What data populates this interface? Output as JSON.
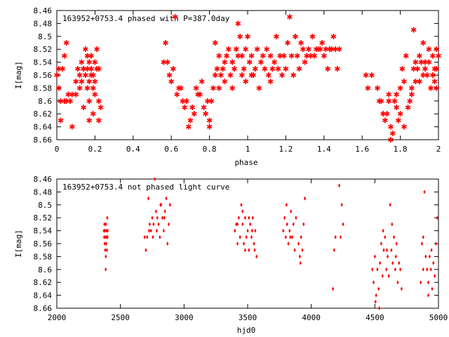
{
  "chart_data": [
    {
      "type": "scatter",
      "title": "163952+0753.4 phased with P=387.0day",
      "xlabel": "phase",
      "ylabel": "I[mag]",
      "xlim": [
        0,
        2
      ],
      "ylim": [
        8.66,
        8.46
      ],
      "y_inverted": true,
      "grid": false,
      "color": "#ff0000",
      "marker": "star",
      "xticks": [
        "0",
        "0.2",
        "0.4",
        "0.6",
        "0.8",
        "1",
        "1.2",
        "1.4",
        "1.6",
        "1.8",
        "2"
      ],
      "yticks": [
        "8.46",
        "8.48",
        "8.5",
        "8.52",
        "8.54",
        "8.56",
        "8.58",
        "8.6",
        "8.62",
        "8.64",
        "8.66"
      ],
      "points": [
        [
          0.0,
          8.56
        ],
        [
          0.01,
          8.58
        ],
        [
          0.01,
          8.55
        ],
        [
          0.02,
          8.6
        ],
        [
          0.02,
          8.63
        ],
        [
          0.03,
          8.55
        ],
        [
          0.04,
          8.53
        ],
        [
          0.04,
          8.6
        ],
        [
          0.05,
          8.51
        ],
        [
          0.05,
          8.6
        ],
        [
          0.06,
          8.59
        ],
        [
          0.07,
          8.6
        ],
        [
          0.08,
          8.59
        ],
        [
          0.08,
          8.64
        ],
        [
          0.1,
          8.59
        ],
        [
          0.1,
          8.57
        ],
        [
          0.11,
          8.55
        ],
        [
          0.12,
          8.56
        ],
        [
          0.12,
          8.58
        ],
        [
          0.13,
          8.54
        ],
        [
          0.13,
          8.57
        ],
        [
          0.14,
          8.55
        ],
        [
          0.14,
          8.61
        ],
        [
          0.15,
          8.52
        ],
        [
          0.15,
          8.56
        ],
        [
          0.16,
          8.53
        ],
        [
          0.16,
          8.55
        ],
        [
          0.16,
          8.58
        ],
        [
          0.17,
          8.54
        ],
        [
          0.17,
          8.57
        ],
        [
          0.17,
          8.6
        ],
        [
          0.18,
          8.55
        ],
        [
          0.18,
          8.53
        ],
        [
          0.19,
          8.56
        ],
        [
          0.19,
          8.58
        ],
        [
          0.19,
          8.62
        ],
        [
          0.2,
          8.54
        ],
        [
          0.2,
          8.57
        ],
        [
          0.21,
          8.52
        ],
        [
          0.21,
          8.55
        ],
        [
          0.22,
          8.6
        ],
        [
          0.22,
          8.63
        ],
        [
          0.23,
          8.61
        ],
        [
          0.17,
          8.63
        ],
        [
          0.14,
          8.55
        ],
        [
          0.2,
          8.59
        ],
        [
          0.18,
          8.56
        ],
        [
          0.22,
          8.55
        ],
        [
          0.56,
          8.54
        ],
        [
          0.57,
          8.51
        ],
        [
          0.58,
          8.54
        ],
        [
          0.59,
          8.56
        ],
        [
          0.6,
          8.57
        ],
        [
          0.61,
          8.55
        ],
        [
          0.62,
          8.47
        ],
        [
          0.63,
          8.59
        ],
        [
          0.64,
          8.58
        ],
        [
          0.65,
          8.58
        ],
        [
          0.66,
          8.6
        ],
        [
          0.67,
          8.61
        ],
        [
          0.68,
          8.6
        ],
        [
          0.69,
          8.64
        ],
        [
          0.7,
          8.63
        ],
        [
          0.71,
          8.61
        ],
        [
          0.72,
          8.62
        ],
        [
          0.73,
          8.58
        ],
        [
          0.74,
          8.59
        ],
        [
          0.75,
          8.59
        ],
        [
          0.76,
          8.57
        ],
        [
          0.77,
          8.61
        ],
        [
          0.78,
          8.62
        ],
        [
          0.79,
          8.6
        ],
        [
          0.8,
          8.63
        ],
        [
          0.8,
          8.64
        ],
        [
          0.81,
          8.6
        ],
        [
          0.82,
          8.58
        ],
        [
          0.83,
          8.56
        ],
        [
          0.84,
          8.55
        ],
        [
          0.85,
          8.53
        ],
        [
          0.86,
          8.56
        ],
        [
          0.87,
          8.55
        ],
        [
          0.88,
          8.54
        ],
        [
          0.89,
          8.53
        ],
        [
          0.9,
          8.52
        ],
        [
          0.91,
          8.56
        ],
        [
          0.92,
          8.54
        ],
        [
          0.93,
          8.55
        ],
        [
          0.94,
          8.52
        ],
        [
          0.95,
          8.48
        ],
        [
          0.96,
          8.5
        ],
        [
          0.97,
          8.53
        ],
        [
          0.98,
          8.55
        ],
        [
          0.99,
          8.52
        ],
        [
          1.0,
          8.5
        ],
        [
          1.01,
          8.54
        ],
        [
          1.02,
          8.53
        ],
        [
          1.03,
          8.56
        ],
        [
          1.04,
          8.55
        ],
        [
          1.05,
          8.52
        ],
        [
          1.06,
          8.58
        ],
        [
          1.07,
          8.54
        ],
        [
          1.08,
          8.53
        ],
        [
          1.09,
          8.55
        ],
        [
          1.1,
          8.52
        ],
        [
          1.11,
          8.56
        ],
        [
          1.12,
          8.53
        ],
        [
          1.13,
          8.55
        ],
        [
          1.14,
          8.54
        ],
        [
          1.15,
          8.5
        ],
        [
          1.16,
          8.55
        ],
        [
          1.17,
          8.53
        ],
        [
          1.18,
          8.56
        ],
        [
          1.19,
          8.53
        ],
        [
          1.2,
          8.55
        ],
        [
          1.21,
          8.51
        ],
        [
          1.22,
          8.47
        ],
        [
          1.23,
          8.53
        ],
        [
          1.24,
          8.56
        ],
        [
          1.25,
          8.5
        ],
        [
          1.26,
          8.53
        ],
        [
          1.27,
          8.55
        ],
        [
          1.28,
          8.51
        ],
        [
          1.29,
          8.52
        ],
        [
          1.3,
          8.54
        ],
        [
          1.31,
          8.53
        ],
        [
          1.32,
          8.52
        ],
        [
          1.33,
          8.53
        ],
        [
          1.34,
          8.5
        ],
        [
          1.35,
          8.53
        ],
        [
          1.36,
          8.52
        ],
        [
          1.37,
          8.52
        ],
        [
          1.38,
          8.52
        ],
        [
          1.39,
          8.51
        ],
        [
          1.4,
          8.53
        ],
        [
          1.41,
          8.52
        ],
        [
          1.42,
          8.55
        ],
        [
          1.43,
          8.52
        ],
        [
          1.44,
          8.52
        ],
        [
          1.45,
          8.5
        ],
        [
          1.46,
          8.52
        ],
        [
          1.47,
          8.55
        ],
        [
          1.48,
          8.52
        ],
        [
          0.83,
          8.51
        ],
        [
          0.88,
          8.57
        ],
        [
          0.92,
          8.58
        ],
        [
          0.97,
          8.56
        ],
        [
          1.02,
          8.56
        ],
        [
          0.85,
          8.58
        ],
        [
          0.95,
          8.53
        ],
        [
          0.99,
          8.57
        ],
        [
          1.12,
          8.57
        ],
        [
          1.62,
          8.56
        ],
        [
          1.63,
          8.58
        ],
        [
          1.65,
          8.56
        ],
        [
          1.68,
          8.58
        ],
        [
          1.69,
          8.6
        ],
        [
          1.7,
          8.6
        ],
        [
          1.71,
          8.62
        ],
        [
          1.72,
          8.63
        ],
        [
          1.73,
          8.62
        ],
        [
          1.74,
          8.59
        ],
        [
          1.75,
          8.64
        ],
        [
          1.75,
          8.66
        ],
        [
          1.76,
          8.65
        ],
        [
          1.77,
          8.6
        ],
        [
          1.78,
          8.61
        ],
        [
          1.79,
          8.63
        ],
        [
          1.8,
          8.62
        ],
        [
          1.8,
          8.58
        ],
        [
          1.81,
          8.55
        ],
        [
          1.82,
          8.57
        ],
        [
          1.82,
          8.64
        ],
        [
          1.83,
          8.53
        ],
        [
          1.84,
          8.61
        ],
        [
          1.85,
          8.6
        ],
        [
          1.86,
          8.59
        ],
        [
          1.86,
          8.58
        ],
        [
          1.87,
          8.55
        ],
        [
          1.87,
          8.49
        ],
        [
          1.88,
          8.54
        ],
        [
          1.88,
          8.57
        ],
        [
          1.89,
          8.55
        ],
        [
          1.9,
          8.53
        ],
        [
          1.9,
          8.57
        ],
        [
          1.91,
          8.54
        ],
        [
          1.92,
          8.56
        ],
        [
          1.92,
          8.51
        ],
        [
          1.93,
          8.55
        ],
        [
          1.94,
          8.56
        ],
        [
          1.95,
          8.52
        ],
        [
          1.95,
          8.54
        ],
        [
          1.96,
          8.58
        ],
        [
          1.97,
          8.53
        ],
        [
          1.97,
          8.56
        ],
        [
          1.98,
          8.55
        ],
        [
          1.98,
          8.57
        ],
        [
          1.99,
          8.55
        ],
        [
          1.99,
          8.58
        ],
        [
          2.0,
          8.53
        ],
        [
          1.74,
          8.6
        ],
        [
          1.78,
          8.59
        ],
        [
          1.93,
          8.54
        ],
        [
          1.99,
          8.52
        ]
      ]
    },
    {
      "type": "scatter",
      "title": "163952+0753.4 not phased light curve",
      "xlabel": "hjd0",
      "ylabel": "I[mag]",
      "xlim": [
        2000,
        5000
      ],
      "ylim": [
        8.66,
        8.46
      ],
      "y_inverted": true,
      "grid": false,
      "color": "#ff0000",
      "marker": "diamond",
      "xticks": [
        "2000",
        "2500",
        "3000",
        "3500",
        "4000",
        "4500",
        "5000"
      ],
      "yticks": [
        "8.46",
        "8.48",
        "8.5",
        "8.52",
        "8.54",
        "8.56",
        "8.58",
        "8.6",
        "8.62",
        "8.64",
        "8.66"
      ],
      "points": [
        [
          2370,
          8.54
        ],
        [
          2372,
          8.55
        ],
        [
          2374,
          8.53
        ],
        [
          2376,
          8.56
        ],
        [
          2378,
          8.54
        ],
        [
          2380,
          8.57
        ],
        [
          2382,
          8.55
        ],
        [
          2384,
          8.6
        ],
        [
          2386,
          8.53
        ],
        [
          2388,
          8.56
        ],
        [
          2390,
          8.54
        ],
        [
          2392,
          8.55
        ],
        [
          2394,
          8.57
        ],
        [
          2396,
          8.52
        ],
        [
          2398,
          8.55
        ],
        [
          2400,
          8.54
        ],
        [
          2385,
          8.58
        ],
        [
          2690,
          8.55
        ],
        [
          2700,
          8.57
        ],
        [
          2710,
          8.55
        ],
        [
          2720,
          8.49
        ],
        [
          2730,
          8.53
        ],
        [
          2740,
          8.54
        ],
        [
          2750,
          8.52
        ],
        [
          2760,
          8.53
        ],
        [
          2770,
          8.46
        ],
        [
          2780,
          8.51
        ],
        [
          2790,
          8.52
        ],
        [
          2800,
          8.53
        ],
        [
          2810,
          8.55
        ],
        [
          2820,
          8.5
        ],
        [
          2830,
          8.52
        ],
        [
          2840,
          8.54
        ],
        [
          2850,
          8.51
        ],
        [
          2860,
          8.49
        ],
        [
          2870,
          8.56
        ],
        [
          2880,
          8.53
        ],
        [
          2890,
          8.5
        ],
        [
          2725,
          8.54
        ],
        [
          2755,
          8.55
        ],
        [
          2785,
          8.54
        ],
        [
          2815,
          8.5
        ],
        [
          2845,
          8.52
        ],
        [
          3400,
          8.54
        ],
        [
          3410,
          8.53
        ],
        [
          3420,
          8.56
        ],
        [
          3430,
          8.52
        ],
        [
          3440,
          8.55
        ],
        [
          3450,
          8.5
        ],
        [
          3460,
          8.53
        ],
        [
          3470,
          8.56
        ],
        [
          3480,
          8.52
        ],
        [
          3490,
          8.55
        ],
        [
          3500,
          8.54
        ],
        [
          3510,
          8.57
        ],
        [
          3520,
          8.53
        ],
        [
          3530,
          8.55
        ],
        [
          3540,
          8.52
        ],
        [
          3550,
          8.56
        ],
        [
          3560,
          8.54
        ],
        [
          3570,
          8.58
        ],
        [
          3420,
          8.53
        ],
        [
          3460,
          8.51
        ],
        [
          3480,
          8.57
        ],
        [
          3510,
          8.52
        ],
        [
          3535,
          8.54
        ],
        [
          3555,
          8.57
        ],
        [
          3780,
          8.54
        ],
        [
          3790,
          8.52
        ],
        [
          3800,
          8.55
        ],
        [
          3810,
          8.53
        ],
        [
          3820,
          8.56
        ],
        [
          3830,
          8.54
        ],
        [
          3840,
          8.51
        ],
        [
          3850,
          8.55
        ],
        [
          3860,
          8.53
        ],
        [
          3870,
          8.57
        ],
        [
          3880,
          8.52
        ],
        [
          3900,
          8.56
        ],
        [
          3910,
          8.58
        ],
        [
          3920,
          8.55
        ],
        [
          3930,
          8.57
        ],
        [
          3940,
          8.53
        ],
        [
          3950,
          8.49
        ],
        [
          3805,
          8.5
        ],
        [
          3835,
          8.55
        ],
        [
          3915,
          8.59
        ],
        [
          4170,
          8.63
        ],
        [
          4180,
          8.57
        ],
        [
          4190,
          8.55
        ],
        [
          4220,
          8.47
        ],
        [
          4230,
          8.55
        ],
        [
          4240,
          8.5
        ],
        [
          4250,
          8.53
        ],
        [
          4480,
          8.6
        ],
        [
          4490,
          8.62
        ],
        [
          4500,
          8.58
        ],
        [
          4510,
          8.64
        ],
        [
          4520,
          8.6
        ],
        [
          4530,
          8.63
        ],
        [
          4540,
          8.59
        ],
        [
          4550,
          8.56
        ],
        [
          4560,
          8.61
        ],
        [
          4570,
          8.57
        ],
        [
          4580,
          8.55
        ],
        [
          4590,
          8.6
        ],
        [
          4600,
          8.58
        ],
        [
          4610,
          8.61
        ],
        [
          4620,
          8.5
        ],
        [
          4630,
          8.57
        ],
        [
          4640,
          8.59
        ],
        [
          4650,
          8.55
        ],
        [
          4660,
          8.6
        ],
        [
          4670,
          8.56
        ],
        [
          4680,
          8.62
        ],
        [
          4700,
          8.6
        ],
        [
          4710,
          8.63
        ],
        [
          4505,
          8.65
        ],
        [
          4535,
          8.66
        ],
        [
          4565,
          8.54
        ],
        [
          4595,
          8.57
        ],
        [
          4635,
          8.53
        ],
        [
          4665,
          8.58
        ],
        [
          4690,
          8.59
        ],
        [
          4860,
          8.62
        ],
        [
          4870,
          8.56
        ],
        [
          4880,
          8.55
        ],
        [
          4890,
          8.48
        ],
        [
          4900,
          8.58
        ],
        [
          4910,
          8.6
        ],
        [
          4920,
          8.62
        ],
        [
          4930,
          8.58
        ],
        [
          4940,
          8.6
        ],
        [
          4950,
          8.63
        ],
        [
          4960,
          8.59
        ],
        [
          4970,
          8.61
        ],
        [
          4980,
          8.56
        ],
        [
          4990,
          8.52
        ],
        [
          4880,
          8.6
        ],
        [
          4920,
          8.64
        ],
        [
          4945,
          8.57
        ]
      ]
    }
  ]
}
